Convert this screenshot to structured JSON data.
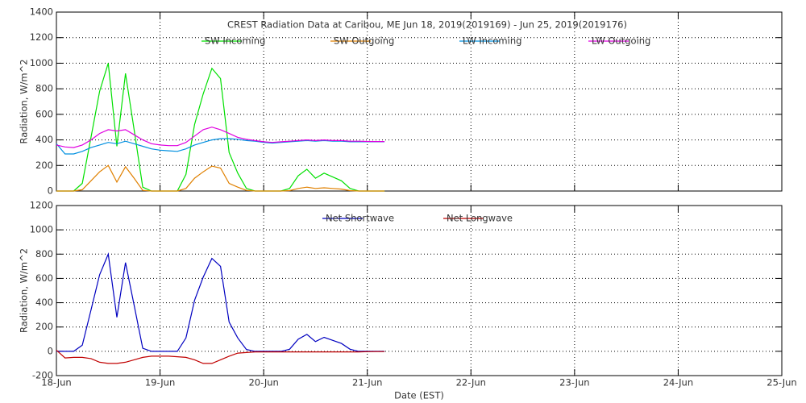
{
  "chart_data": [
    {
      "type": "line",
      "title": "CREST Radiation Data at Caribou, ME   Jun 18, 2019(2019169) - Jun 25, 2019(2019176)",
      "y_label": "Radiation, W/m^2",
      "x": [
        0,
        2,
        4,
        6,
        8,
        10,
        12,
        14,
        16,
        18,
        20,
        22,
        24,
        26,
        28,
        30,
        32,
        34,
        36,
        38,
        40,
        42,
        44,
        46,
        48,
        50,
        52,
        54,
        56,
        58,
        60,
        62,
        64,
        66,
        68,
        70,
        72,
        74,
        76
      ],
      "xlim": [
        0,
        168
      ],
      "xticks": [
        0,
        24,
        48,
        72,
        96,
        120,
        144,
        168
      ],
      "ylim": [
        0,
        1400
      ],
      "yticks": [
        0,
        200,
        400,
        600,
        800,
        1000,
        1200,
        1400
      ],
      "grid": true,
      "series": [
        {
          "name": "SW Incoming",
          "color": "#00e000",
          "values": [
            0,
            0,
            0,
            60,
            420,
            780,
            1000,
            350,
            920,
            480,
            30,
            0,
            0,
            0,
            0,
            130,
            520,
            760,
            960,
            880,
            300,
            140,
            20,
            0,
            0,
            0,
            0,
            20,
            120,
            170,
            100,
            140,
            110,
            80,
            20,
            0,
            0,
            0,
            0
          ]
        },
        {
          "name": "SW Outgoing",
          "color": "#e08000",
          "values": [
            0,
            0,
            0,
            10,
            80,
            150,
            200,
            70,
            190,
            100,
            5,
            0,
            0,
            0,
            0,
            20,
            100,
            150,
            195,
            180,
            60,
            30,
            5,
            0,
            0,
            0,
            0,
            3,
            20,
            30,
            20,
            25,
            20,
            15,
            3,
            0,
            0,
            0,
            0
          ]
        },
        {
          "name": "LW Incoming",
          "color": "#0090e0",
          "values": [
            370,
            290,
            290,
            310,
            340,
            360,
            380,
            370,
            390,
            370,
            350,
            330,
            320,
            315,
            310,
            330,
            360,
            380,
            400,
            410,
            410,
            405,
            395,
            390,
            380,
            375,
            380,
            385,
            390,
            395,
            390,
            395,
            390,
            390,
            385,
            385,
            385,
            385,
            385
          ]
        },
        {
          "name": "LW Outgoing",
          "color": "#e000e0",
          "values": [
            360,
            345,
            340,
            360,
            400,
            450,
            480,
            470,
            480,
            440,
            400,
            370,
            360,
            355,
            355,
            380,
            430,
            480,
            500,
            480,
            450,
            420,
            405,
            395,
            385,
            380,
            385,
            390,
            395,
            400,
            395,
            400,
            395,
            395,
            390,
            390,
            388,
            387,
            387
          ]
        }
      ]
    },
    {
      "type": "line",
      "x_label": "Date (EST)",
      "y_label": "Radiation, W/m^2",
      "x": [
        0,
        2,
        4,
        6,
        8,
        10,
        12,
        14,
        16,
        18,
        20,
        22,
        24,
        26,
        28,
        30,
        32,
        34,
        36,
        38,
        40,
        42,
        44,
        46,
        48,
        50,
        52,
        54,
        56,
        58,
        60,
        62,
        64,
        66,
        68,
        70,
        72,
        74,
        76
      ],
      "xlim": [
        0,
        168
      ],
      "xticks": [
        {
          "value": 0,
          "label": "18-Jun"
        },
        {
          "value": 24,
          "label": "19-Jun"
        },
        {
          "value": 48,
          "label": "20-Jun"
        },
        {
          "value": 72,
          "label": "21-Jun"
        },
        {
          "value": 96,
          "label": "22-Jun"
        },
        {
          "value": 120,
          "label": "23-Jun"
        },
        {
          "value": 144,
          "label": "24-Jun"
        },
        {
          "value": 168,
          "label": "25-Jun"
        }
      ],
      "ylim": [
        -200,
        1200
      ],
      "yticks": [
        -200,
        0,
        200,
        400,
        600,
        800,
        1000,
        1200
      ],
      "grid": true,
      "series": [
        {
          "name": "Net Shortwave",
          "color": "#0000c0",
          "values": [
            0,
            0,
            0,
            50,
            340,
            630,
            800,
            280,
            730,
            380,
            25,
            0,
            0,
            0,
            0,
            110,
            420,
            610,
            765,
            700,
            240,
            110,
            15,
            0,
            0,
            0,
            0,
            17,
            100,
            140,
            80,
            115,
            90,
            65,
            17,
            0,
            0,
            0,
            0
          ]
        },
        {
          "name": "Net Longwave",
          "color": "#c00000",
          "values": [
            10,
            -55,
            -50,
            -50,
            -60,
            -90,
            -100,
            -100,
            -90,
            -70,
            -50,
            -40,
            -40,
            -40,
            -45,
            -50,
            -70,
            -100,
            -100,
            -70,
            -40,
            -15,
            -10,
            -5,
            -5,
            -5,
            -5,
            -5,
            -5,
            -5,
            -5,
            -5,
            -5,
            -5,
            -5,
            -5,
            -3,
            -2,
            -2
          ]
        }
      ]
    }
  ]
}
